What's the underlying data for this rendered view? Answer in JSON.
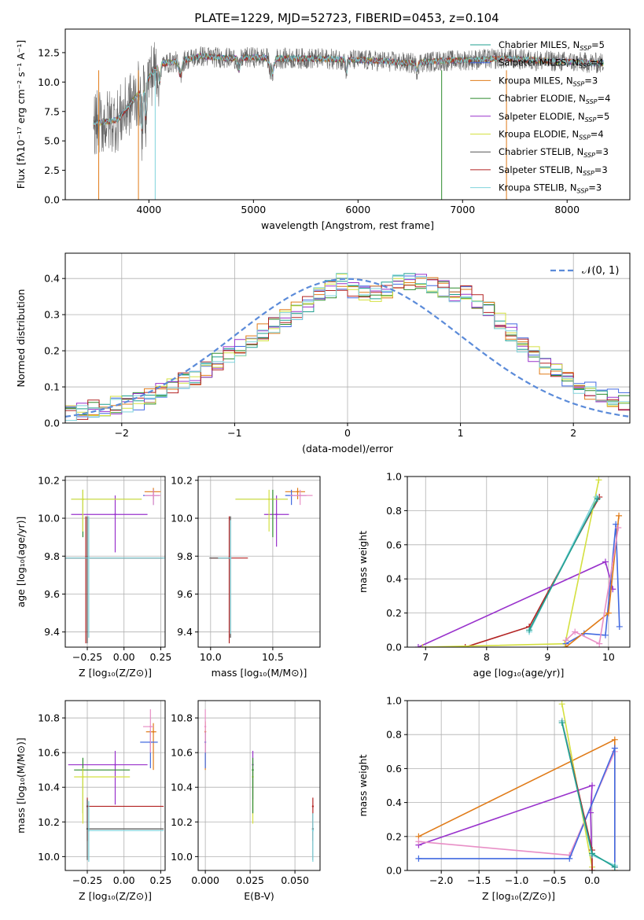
{
  "chart_data": [
    {
      "type": "line",
      "id": "spectrum",
      "title": "PLATE=1229, MJD=52723, FIBERID=0453, z=0.104",
      "xlabel": "wavelength [Angstrom, rest frame]",
      "ylabel": "Flux [fλ10⁻¹⁷ erg cm⁻² s⁻¹ A⁻¹]",
      "xlim": [
        3200,
        8600
      ],
      "ylim": [
        0,
        14.5
      ],
      "xticks": [
        "4000",
        "5000",
        "6000",
        "7000",
        "8000"
      ],
      "yticks": [
        "0.0",
        "2.5",
        "5.0",
        "7.5",
        "10.0",
        "12.5"
      ],
      "legend_position": "upper-right",
      "series": [
        {
          "name": "Chabrier MILES, N",
          "sub": "SSP",
          "suffix": "=5",
          "color": "#1f9f8f"
        },
        {
          "name": "Salpeter MILES, N",
          "sub": "SSP",
          "suffix": "=4",
          "color": "#4169e1"
        },
        {
          "name": "Kroupa MILES, N",
          "sub": "SSP",
          "suffix": "=3",
          "color": "#e07b18"
        },
        {
          "name": "Chabrier ELODIE, N",
          "sub": "SSP",
          "suffix": "=4",
          "color": "#2e8b2e"
        },
        {
          "name": "Salpeter ELODIE, N",
          "sub": "SSP",
          "suffix": "=5",
          "color": "#9932cc"
        },
        {
          "name": "Kroupa ELODIE, N",
          "sub": "SSP",
          "suffix": "=4",
          "color": "#d4e040"
        },
        {
          "name": "Chabrier STELIB, N",
          "sub": "SSP",
          "suffix": "=3",
          "color": "#555555"
        },
        {
          "name": "Salpeter STELIB, N",
          "sub": "SSP",
          "suffix": "=3",
          "color": "#b22222"
        },
        {
          "name": "Kroupa STELIB, N",
          "sub": "SSP",
          "suffix": "=3",
          "color": "#7fd3dc"
        }
      ],
      "data_shape": {
        "x": [
          3500,
          3700,
          3900,
          4000,
          4100,
          4300,
          4500,
          4800,
          5000,
          5300,
          5600,
          5900,
          6200,
          6500,
          6800,
          7100,
          7400,
          7800,
          8300
        ],
        "y": [
          6.5,
          6.8,
          9.0,
          10.4,
          11.5,
          11.8,
          12.2,
          12.0,
          12.1,
          12.0,
          12.0,
          11.9,
          11.8,
          11.6,
          11.8,
          11.9,
          12.0,
          11.8,
          11.6
        ]
      }
    },
    {
      "type": "histogram",
      "id": "residuals",
      "xlabel": "(data-model)/error",
      "ylabel": "Normed distribution",
      "xlim": [
        -2.5,
        2.5
      ],
      "ylim": [
        0,
        0.47
      ],
      "xticks": [
        "−2",
        "−1",
        "0",
        "1",
        "2"
      ],
      "yticks": [
        "0.0",
        "0.1",
        "0.2",
        "0.3",
        "0.4"
      ],
      "reference": {
        "name": "𝒩(0, 1)",
        "style": "dashed",
        "color": "#5b8bd9",
        "mu": 0,
        "sigma": 1
      },
      "bin_width": 0.1,
      "bin_start": -2.5,
      "profile_values": [
        0.03,
        0.035,
        0.04,
        0.045,
        0.05,
        0.055,
        0.06,
        0.07,
        0.085,
        0.1,
        0.12,
        0.13,
        0.15,
        0.17,
        0.19,
        0.21,
        0.23,
        0.25,
        0.27,
        0.29,
        0.31,
        0.33,
        0.35,
        0.37,
        0.39,
        0.37,
        0.36,
        0.36,
        0.37,
        0.39,
        0.39,
        0.39,
        0.38,
        0.37,
        0.36,
        0.36,
        0.34,
        0.31,
        0.28,
        0.25,
        0.22,
        0.19,
        0.16,
        0.14,
        0.12,
        0.1,
        0.09,
        0.08,
        0.07,
        0.06,
        0.05
      ]
    },
    {
      "type": "scatter",
      "id": "age-vs-Z",
      "xlabel": "Z [log₁₀(Z/Z⊙)]",
      "ylabel": "age  [log₁₀(age/yr)]",
      "xlim": [
        -0.4,
        0.28
      ],
      "ylim": [
        9.32,
        10.22
      ],
      "xticks": [
        -0.25,
        0.0,
        0.25
      ],
      "xticklabels": [
        "−0.25",
        "0.00",
        "0.25"
      ],
      "yticks": [
        9.4,
        9.6,
        9.8,
        10.0,
        10.2
      ],
      "yticklabels": [
        "9.4",
        "9.6",
        "9.8",
        "10.0",
        "10.2"
      ],
      "points": [
        {
          "x": -0.26,
          "y": 9.79,
          "xerr": [
            0.26,
            0.52
          ],
          "yerr": [
            0.45,
            0.22
          ],
          "color": "#b22222"
        },
        {
          "x": -0.25,
          "y": 9.79,
          "xerr": [
            0.26,
            0.52
          ],
          "yerr": [
            0.45,
            0.22
          ],
          "color": "#555555"
        },
        {
          "x": -0.24,
          "y": 9.79,
          "xerr": [
            0.26,
            0.52
          ],
          "yerr": [
            0.42,
            0.22
          ],
          "color": "#7fd3dc"
        },
        {
          "x": -0.06,
          "y": 10.02,
          "xerr": [
            0.3,
            0.22
          ],
          "yerr": [
            0.2,
            0.1
          ],
          "color": "#9932cc"
        },
        {
          "x": -0.28,
          "y": 10.1,
          "xerr": [
            0.08,
            0.4
          ],
          "yerr": [
            0.2,
            0.05
          ],
          "color": "#2e8b2e"
        },
        {
          "x": -0.28,
          "y": 10.1,
          "xerr": [
            0.08,
            0.4
          ],
          "yerr": [
            0.17,
            0.05
          ],
          "color": "#d4e040"
        },
        {
          "x": 0.2,
          "y": 10.14,
          "xerr": [
            0.06,
            0.05
          ],
          "yerr": [
            0.04,
            0.02
          ],
          "color": "#e07b18"
        },
        {
          "x": 0.2,
          "y": 10.12,
          "xerr": [
            0.07,
            0.04
          ],
          "yerr": [
            0.05,
            0.03
          ],
          "color": "#4169e1"
        },
        {
          "x": 0.2,
          "y": 10.12,
          "xerr": [
            0.06,
            0.05
          ],
          "yerr": [
            0.05,
            0.03
          ],
          "color": "#e88fc6"
        }
      ]
    },
    {
      "type": "scatter",
      "id": "age-vs-mass",
      "xlabel": "mass [log₁₀(M/M⊙)]",
      "ylabel": "",
      "xlim": [
        9.9,
        10.88
      ],
      "ylim": [
        9.32,
        10.22
      ],
      "xticks": [
        10.0,
        10.5
      ],
      "xticklabels": [
        "10.0",
        "10.5"
      ],
      "yticks": [
        9.4,
        9.6,
        9.8,
        10.0,
        10.2
      ],
      "yticklabels": [
        "9.4",
        "9.6",
        "9.8",
        "10.0",
        "10.2"
      ],
      "points": [
        {
          "x": 10.15,
          "y": 9.79,
          "xerr": [
            0.15,
            0.15
          ],
          "yerr": [
            0.45,
            0.22
          ],
          "color": "#b22222"
        },
        {
          "x": 10.16,
          "y": 9.79,
          "xerr": [
            0.17,
            0.0
          ],
          "yerr": [
            0.42,
            0.22
          ],
          "color": "#555555"
        },
        {
          "x": 10.16,
          "y": 9.79,
          "xerr": [
            0.1,
            0.0
          ],
          "yerr": [
            0.4,
            0.2
          ],
          "color": "#7fd3dc"
        },
        {
          "x": 10.53,
          "y": 10.02,
          "xerr": [
            0.1,
            0.1
          ],
          "yerr": [
            0.17,
            0.1
          ],
          "color": "#9932cc"
        },
        {
          "x": 10.5,
          "y": 10.1,
          "xerr": [
            0.3,
            0.12
          ],
          "yerr": [
            0.2,
            0.05
          ],
          "color": "#2e8b2e"
        },
        {
          "x": 10.47,
          "y": 10.1,
          "xerr": [
            0.27,
            0.15
          ],
          "yerr": [
            0.17,
            0.05
          ],
          "color": "#d4e040"
        },
        {
          "x": 10.7,
          "y": 10.14,
          "xerr": [
            0.1,
            0.06
          ],
          "yerr": [
            0.04,
            0.02
          ],
          "color": "#e07b18"
        },
        {
          "x": 10.65,
          "y": 10.12,
          "xerr": [
            0.05,
            0.12
          ],
          "yerr": [
            0.05,
            0.03
          ],
          "color": "#4169e1"
        },
        {
          "x": 10.72,
          "y": 10.12,
          "xerr": [
            0.08,
            0.1
          ],
          "yerr": [
            0.05,
            0.03
          ],
          "color": "#e88fc6"
        }
      ]
    },
    {
      "type": "line",
      "id": "massweight-vs-age",
      "xlabel": "age  [log₁₀(age/yr)]",
      "ylabel": "mass weight",
      "xlim": [
        6.7,
        10.35
      ],
      "ylim": [
        0,
        1.0
      ],
      "xticks": [
        7,
        8,
        9,
        10
      ],
      "xticklabels": [
        "7",
        "8",
        "9",
        "10"
      ],
      "yticks": [
        0.0,
        0.2,
        0.4,
        0.6,
        0.8,
        1.0
      ],
      "yticklabels": [
        "0.0",
        "0.2",
        "0.4",
        "0.6",
        "0.8",
        "1.0"
      ],
      "series": [
        {
          "color": "#b22222",
          "x": [
            7.65,
            8.7,
            9.85
          ],
          "y": [
            0.0,
            0.12,
            0.88
          ]
        },
        {
          "color": "#9932cc",
          "x": [
            6.88,
            9.95,
            10.07
          ],
          "y": [
            0.0,
            0.5,
            0.34
          ]
        },
        {
          "color": "#d4e040",
          "x": [
            6.95,
            9.28,
            9.3,
            9.84
          ],
          "y": [
            0.0,
            0.02,
            0.04,
            0.98
          ]
        },
        {
          "color": "#7fd3dc",
          "x": [
            8.7,
            9.8
          ],
          "y": [
            0.09,
            0.88
          ]
        },
        {
          "color": "#1f9f8f",
          "x": [
            8.7,
            9.82
          ],
          "y": [
            0.1,
            0.87
          ]
        },
        {
          "color": "#4169e1",
          "x": [
            9.3,
            9.6,
            9.95,
            10.12,
            10.18
          ],
          "y": [
            0.02,
            0.08,
            0.07,
            0.72,
            0.12
          ]
        },
        {
          "color": "#e07b18",
          "x": [
            9.3,
            10.0,
            10.17
          ],
          "y": [
            0.0,
            0.2,
            0.77
          ]
        },
        {
          "color": "#e88fc6",
          "x": [
            9.3,
            9.45,
            9.85,
            10.16
          ],
          "y": [
            0.04,
            0.09,
            0.02,
            0.7
          ]
        }
      ]
    },
    {
      "type": "scatter",
      "id": "mass-vs-Z",
      "xlabel": "Z [log₁₀(Z/Z⊙)]",
      "ylabel": "mass [log₁₀(M/M⊙)]",
      "xlim": [
        -0.4,
        0.28
      ],
      "ylim": [
        9.92,
        10.9
      ],
      "xticks": [
        -0.25,
        0.0,
        0.25
      ],
      "xticklabels": [
        "−0.25",
        "0.00",
        "0.25"
      ],
      "yticks": [
        10.0,
        10.2,
        10.4,
        10.6,
        10.8
      ],
      "yticklabels": [
        "10.0",
        "10.2",
        "10.4",
        "10.6",
        "10.8"
      ],
      "points": [
        {
          "x": -0.25,
          "y": 10.29,
          "xerr": [
            0.0,
            0.52
          ],
          "yerr": [
            0.2,
            0.05
          ],
          "color": "#b22222"
        },
        {
          "x": -0.25,
          "y": 10.16,
          "xerr": [
            0.0,
            0.52
          ],
          "yerr": [
            0.18,
            0.17
          ],
          "color": "#555555"
        },
        {
          "x": -0.24,
          "y": 10.15,
          "xerr": [
            0.0,
            0.51
          ],
          "yerr": [
            0.18,
            0.17
          ],
          "color": "#7fd3dc"
        },
        {
          "x": -0.06,
          "y": 10.53,
          "xerr": [
            0.32,
            0.22
          ],
          "yerr": [
            0.23,
            0.08
          ],
          "color": "#9932cc"
        },
        {
          "x": -0.28,
          "y": 10.5,
          "xerr": [
            0.06,
            0.32
          ],
          "yerr": [
            0.25,
            0.07
          ],
          "color": "#2e8b2e"
        },
        {
          "x": -0.28,
          "y": 10.46,
          "xerr": [
            0.06,
            0.32
          ],
          "yerr": [
            0.27,
            0.05
          ],
          "color": "#d4e040"
        },
        {
          "x": 0.2,
          "y": 10.72,
          "xerr": [
            0.05,
            0.02
          ],
          "yerr": [
            0.22,
            0.05
          ],
          "color": "#e07b18"
        },
        {
          "x": 0.18,
          "y": 10.66,
          "xerr": [
            0.07,
            0.05
          ],
          "yerr": [
            0.15,
            0.07
          ],
          "color": "#4169e1"
        },
        {
          "x": 0.18,
          "y": 10.75,
          "xerr": [
            0.05,
            0.02
          ],
          "yerr": [
            0.15,
            0.1
          ],
          "color": "#e88fc6"
        }
      ]
    },
    {
      "type": "scatter",
      "id": "mass-vs-EBV",
      "xlabel": "E(B-V)",
      "ylabel": "",
      "xlim": [
        -0.004,
        0.064
      ],
      "ylim": [
        9.92,
        10.9
      ],
      "xticks": [
        0.0,
        0.025,
        0.05
      ],
      "xticklabels": [
        "0.000",
        "0.025",
        "0.050"
      ],
      "yticks": [
        10.0,
        10.2,
        10.4,
        10.6,
        10.8
      ],
      "yticklabels": [
        "10.0",
        "10.2",
        "10.4",
        "10.6",
        "10.8"
      ],
      "points": [
        {
          "x": 0.0,
          "y": 10.72,
          "xerr": [
            0,
            0
          ],
          "yerr": [
            0.22,
            0.06
          ],
          "color": "#e07b18"
        },
        {
          "x": 0.0,
          "y": 10.66,
          "xerr": [
            0,
            0
          ],
          "yerr": [
            0.15,
            0.06
          ],
          "color": "#4169e1"
        },
        {
          "x": 0.0,
          "y": 10.75,
          "xerr": [
            0,
            0
          ],
          "yerr": [
            0.15,
            0.1
          ],
          "color": "#e88fc6"
        },
        {
          "x": 0.0265,
          "y": 10.53,
          "xerr": [
            0,
            0
          ],
          "yerr": [
            0.2,
            0.08
          ],
          "color": "#9932cc"
        },
        {
          "x": 0.0265,
          "y": 10.46,
          "xerr": [
            0,
            0
          ],
          "yerr": [
            0.27,
            0.05
          ],
          "color": "#d4e040"
        },
        {
          "x": 0.0265,
          "y": 10.5,
          "xerr": [
            0,
            0
          ],
          "yerr": [
            0.25,
            0.07
          ],
          "color": "#2e8b2e"
        },
        {
          "x": 0.06,
          "y": 10.29,
          "xerr": [
            0,
            0
          ],
          "yerr": [
            0.2,
            0.05
          ],
          "color": "#b22222"
        },
        {
          "x": 0.06,
          "y": 10.16,
          "xerr": [
            0,
            0
          ],
          "yerr": [
            0.18,
            0.09
          ],
          "color": "#555555"
        },
        {
          "x": 0.06,
          "y": 10.15,
          "xerr": [
            0,
            0
          ],
          "yerr": [
            0.18,
            0.1
          ],
          "color": "#7fd3dc"
        }
      ]
    },
    {
      "type": "line",
      "id": "massweight-vs-Z",
      "xlabel": "Z [log₁₀(Z/Z⊙)]",
      "ylabel": "mass weight",
      "xlim": [
        -2.45,
        0.5
      ],
      "ylim": [
        0,
        1.0
      ],
      "xticks": [
        -2.0,
        -1.5,
        -1.0,
        -0.5,
        0.0
      ],
      "xticklabels": [
        "−2.0",
        "−1.5",
        "−1.0",
        "−0.5",
        "0.0"
      ],
      "yticks": [
        0.0,
        0.2,
        0.4,
        0.6,
        0.8,
        1.0
      ],
      "yticklabels": [
        "0.0",
        "0.2",
        "0.4",
        "0.6",
        "0.8",
        "1.0"
      ],
      "series": [
        {
          "color": "#e07b18",
          "x": [
            -2.3,
            0.3,
            0.3
          ],
          "y": [
            0.2,
            0.77,
            0.0
          ]
        },
        {
          "color": "#9932cc",
          "x": [
            -2.3,
            0.0,
            -0.02,
            0.0
          ],
          "y": [
            0.15,
            0.5,
            0.34,
            0.0
          ]
        },
        {
          "color": "#e88fc6",
          "x": [
            -2.3,
            -0.3,
            0.3,
            0.3
          ],
          "y": [
            0.17,
            0.09,
            0.7,
            0.02
          ]
        },
        {
          "color": "#4169e1",
          "x": [
            -2.3,
            -0.3,
            0.3,
            0.3
          ],
          "y": [
            0.07,
            0.07,
            0.72,
            0.02
          ]
        },
        {
          "color": "#d4e040",
          "x": [
            -0.4,
            0.0,
            0.0
          ],
          "y": [
            0.98,
            0.02,
            0.0
          ]
        },
        {
          "color": "#b22222",
          "x": [
            -0.4,
            0.0,
            0.0
          ],
          "y": [
            0.88,
            0.12,
            0.0
          ]
        },
        {
          "color": "#7fd3dc",
          "x": [
            -0.4,
            0.0,
            0.3
          ],
          "y": [
            0.88,
            0.09,
            0.03
          ]
        },
        {
          "color": "#1f9f8f",
          "x": [
            -0.4,
            0.0,
            0.3
          ],
          "y": [
            0.87,
            0.1,
            0.02
          ]
        }
      ]
    }
  ]
}
